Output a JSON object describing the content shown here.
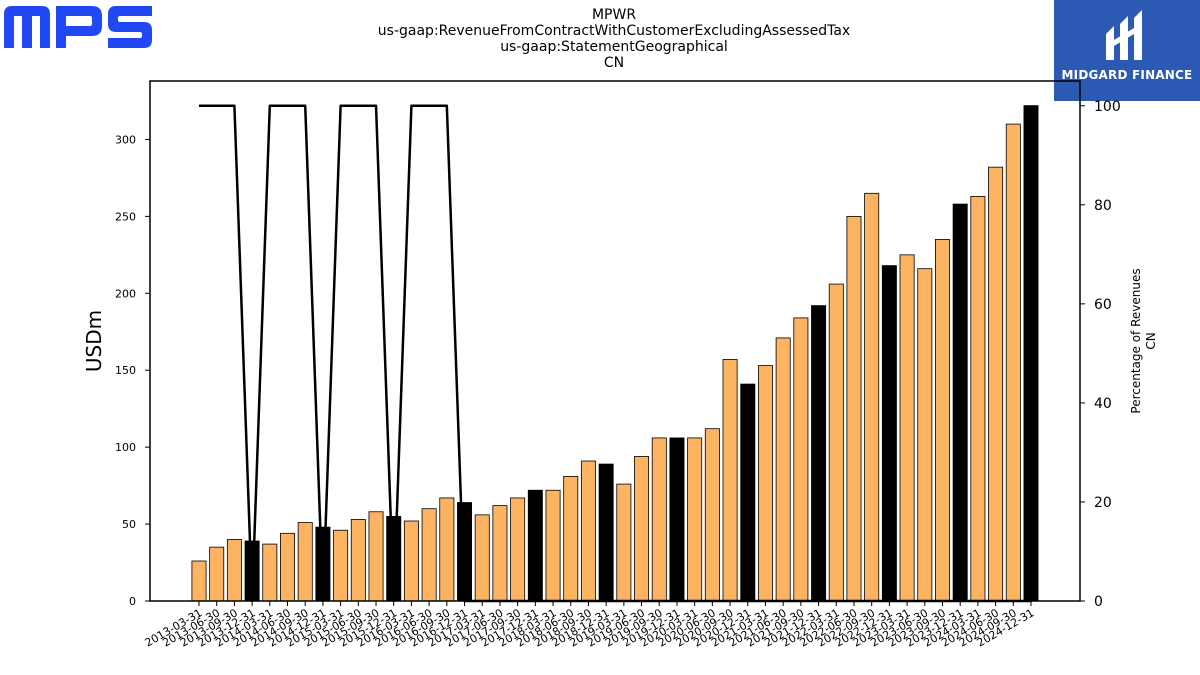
{
  "brand": {
    "logo_text": "MPS",
    "logo_color": "#2148f5"
  },
  "partner": {
    "name": "MIDGARD FINANCE",
    "bg_color": "#2b59b3"
  },
  "chart_data": {
    "type": "bar",
    "title_lines": [
      "MPWR",
      "us-gaap:RevenueFromContractWithCustomerExcludingAssessedTax",
      "us-gaap:StatementGeographical",
      "CN"
    ],
    "ylabel": "USDm",
    "y2label_lines": [
      "Percentage of Revenues",
      "CN"
    ],
    "ylim": [
      0,
      338
    ],
    "y2lim": [
      0,
      105
    ],
    "yticks": [
      0,
      50,
      100,
      150,
      200,
      250,
      300
    ],
    "y2ticks": [
      0,
      20,
      40,
      60,
      80,
      100
    ],
    "bar_color": "#fdb462",
    "highlight_color": "#000000",
    "categories": [
      "2013-03-31",
      "2013-06-30",
      "2013-09-30",
      "2013-12-31",
      "2014-03-31",
      "2014-06-30",
      "2014-09-30",
      "2014-12-31",
      "2015-03-31",
      "2015-06-30",
      "2015-09-30",
      "2015-12-31",
      "2016-03-31",
      "2016-06-30",
      "2016-09-30",
      "2016-12-31",
      "2017-03-31",
      "2017-06-30",
      "2017-09-30",
      "2017-12-31",
      "2018-03-31",
      "2018-06-30",
      "2018-09-30",
      "2018-12-31",
      "2019-03-31",
      "2019-06-30",
      "2019-09-30",
      "2019-12-31",
      "2020-03-31",
      "2020-06-30",
      "2020-09-30",
      "2020-12-31",
      "2021-03-31",
      "2021-06-30",
      "2021-09-30",
      "2021-12-31",
      "2022-03-31",
      "2022-06-30",
      "2022-09-30",
      "2022-12-31",
      "2023-03-31",
      "2023-06-30",
      "2023-09-30",
      "2023-12-31",
      "2024-03-31",
      "2024-06-30",
      "2024-09-30",
      "2024-12-31"
    ],
    "values": [
      26,
      35,
      40,
      39,
      37,
      44,
      51,
      48,
      46,
      53,
      58,
      55,
      52,
      60,
      67,
      64,
      56,
      62,
      67,
      72,
      72,
      81,
      91,
      89,
      76,
      94,
      106,
      106,
      106,
      112,
      157,
      141,
      153,
      171,
      184,
      192,
      206,
      250,
      265,
      218,
      225,
      216,
      235,
      258,
      263,
      282,
      310,
      322
    ],
    "highlighted": [
      false,
      false,
      false,
      true,
      false,
      false,
      false,
      true,
      false,
      false,
      false,
      true,
      false,
      false,
      false,
      true,
      false,
      false,
      false,
      true,
      false,
      false,
      false,
      true,
      false,
      false,
      false,
      true,
      false,
      false,
      false,
      true,
      false,
      false,
      false,
      true,
      false,
      false,
      false,
      true,
      false,
      false,
      false,
      true,
      false,
      false,
      false,
      true
    ],
    "percentage_series": [
      100,
      100,
      100,
      0,
      100,
      100,
      100,
      0,
      100,
      100,
      100,
      0,
      100,
      100,
      100,
      0,
      0,
      0,
      0,
      0,
      0,
      0,
      0,
      0,
      0,
      0,
      0,
      0,
      0,
      0,
      0,
      0,
      0,
      0,
      0,
      0,
      0,
      0,
      0,
      0,
      0,
      0,
      0,
      0,
      0,
      0,
      0,
      0
    ],
    "legend": "none",
    "grid": false
  }
}
